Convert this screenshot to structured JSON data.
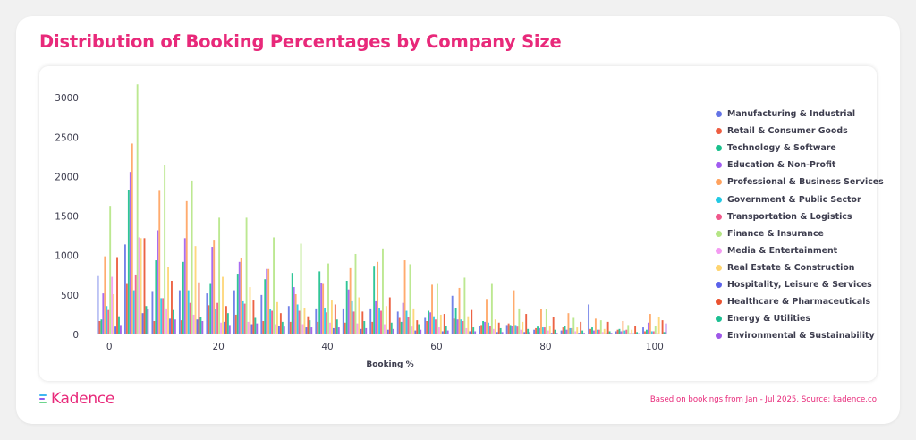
{
  "title": "Distribution of Booking Percentages by Company Size",
  "footnote": "Based on bookings from Jan - Jul 2025. Source: kadence.co",
  "brand": {
    "name": "Kadence",
    "color": "#e8297a"
  },
  "chart_data": {
    "type": "bar",
    "title": "Distribution of Booking Percentages by Company Size",
    "xlabel": "Booking %",
    "ylabel": "",
    "xlim": [
      -2.5,
      102
    ],
    "ylim": [
      0,
      3150
    ],
    "x_ticks": [
      0,
      20,
      40,
      60,
      80,
      100
    ],
    "y_ticks": [
      0,
      500,
      1000,
      1500,
      2000,
      2500,
      3000
    ],
    "bin_width": 5,
    "bins": [
      0,
      5,
      10,
      15,
      20,
      25,
      30,
      35,
      40,
      45,
      50,
      55,
      60,
      65,
      70,
      75,
      80,
      85,
      90,
      95,
      100
    ],
    "grid": false,
    "legend_position": "right",
    "series": [
      {
        "name": "Manufacturing & Industrial",
        "color": "#6474e5",
        "values": [
          740,
          1140,
          550,
          560,
          520,
          560,
          500,
          360,
          330,
          330,
          330,
          290,
          210,
          490,
          110,
          120,
          60,
          50,
          380,
          40,
          90
        ]
      },
      {
        "name": "Retail & Consumer Goods",
        "color": "#ee5d41",
        "values": [
          170,
          640,
          170,
          180,
          370,
          250,
          170,
          160,
          160,
          150,
          160,
          210,
          170,
          200,
          120,
          140,
          80,
          90,
          70,
          60,
          40
        ]
      },
      {
        "name": "Technology & Software",
        "color": "#19c08c",
        "values": [
          190,
          1830,
          940,
          920,
          640,
          770,
          700,
          780,
          800,
          680,
          870,
          160,
          300,
          340,
          170,
          120,
          100,
          110,
          90,
          70,
          60
        ]
      },
      {
        "name": "Education & Non-Profit",
        "color": "#a15cf0",
        "values": [
          520,
          2060,
          1320,
          1220,
          1110,
          920,
          830,
          600,
          650,
          570,
          420,
          400,
          280,
          190,
          160,
          110,
          80,
          60,
          50,
          40,
          150
        ]
      },
      {
        "name": "Professional & Business Services",
        "color": "#ffa25e",
        "values": [
          990,
          2420,
          1820,
          1690,
          1200,
          970,
          830,
          510,
          640,
          840,
          920,
          940,
          630,
          590,
          450,
          560,
          320,
          270,
          200,
          170,
          260
        ]
      },
      {
        "name": "Government & Public Sector",
        "color": "#23c9e4",
        "values": [
          360,
          560,
          460,
          560,
          320,
          420,
          320,
          380,
          340,
          420,
          340,
          300,
          230,
          190,
          150,
          120,
          90,
          80,
          60,
          50,
          40
        ]
      },
      {
        "name": "Transportation & Logistics",
        "color": "#f0578b",
        "values": [
          310,
          760,
          460,
          400,
          400,
          390,
          300,
          300,
          280,
          290,
          300,
          220,
          190,
          170,
          110,
          100,
          90,
          80,
          60,
          60,
          40
        ]
      },
      {
        "name": "Finance & Insurance",
        "color": "#b5e585",
        "values": [
          1630,
          3170,
          2150,
          1950,
          1480,
          1480,
          1230,
          1150,
          900,
          1020,
          1090,
          890,
          640,
          720,
          640,
          330,
          320,
          210,
          180,
          120,
          110
        ]
      },
      {
        "name": "Media & Entertainment",
        "color": "#f49bf2",
        "values": [
          730,
          1230,
          330,
          250,
          150,
          160,
          130,
          130,
          150,
          140,
          130,
          100,
          90,
          80,
          70,
          60,
          50,
          40,
          30,
          20,
          20
        ]
      },
      {
        "name": "Real Estate & Construction",
        "color": "#fed46f",
        "values": [
          510,
          1220,
          860,
          1120,
          730,
          600,
          410,
          340,
          430,
          470,
          360,
          330,
          250,
          230,
          190,
          160,
          110,
          90,
          70,
          60,
          220
        ]
      },
      {
        "name": "Hospitality, Leisure & Services",
        "color": "#5b62ea",
        "values": [
          100,
          270,
          200,
          190,
          160,
          130,
          110,
          90,
          80,
          70,
          60,
          50,
          40,
          40,
          30,
          30,
          20,
          20,
          15,
          15,
          10
        ]
      },
      {
        "name": "Healthcare & Pharmaceuticals",
        "color": "#ea5230",
        "values": [
          980,
          1220,
          680,
          660,
          360,
          430,
          270,
          230,
          380,
          290,
          470,
          180,
          260,
          310,
          150,
          260,
          220,
          160,
          160,
          110,
          180
        ]
      },
      {
        "name": "Energy & Utilities",
        "color": "#1cbf92",
        "values": [
          230,
          360,
          310,
          220,
          270,
          210,
          160,
          180,
          190,
          170,
          150,
          130,
          110,
          90,
          80,
          70,
          60,
          50,
          40,
          30,
          30
        ]
      },
      {
        "name": "Environmental & Sustainability",
        "color": "#9f58e8",
        "values": [
          120,
          320,
          190,
          170,
          120,
          140,
          100,
          90,
          90,
          80,
          70,
          60,
          50,
          40,
          30,
          30,
          20,
          20,
          20,
          15,
          140
        ]
      }
    ]
  }
}
